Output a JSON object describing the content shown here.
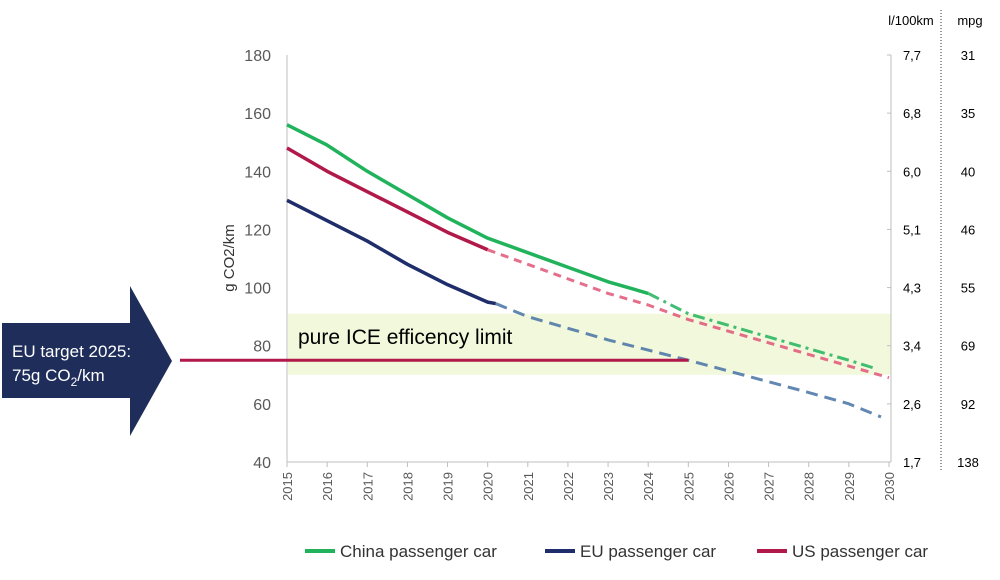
{
  "chart_data": {
    "type": "line",
    "ylabel": "g CO2/km",
    "ylim": [
      40,
      180
    ],
    "yticks": [
      "40",
      "60",
      "80",
      "100",
      "120",
      "140",
      "160",
      "180"
    ],
    "xlim": [
      2015,
      2030
    ],
    "xticks": [
      "2015",
      "2016",
      "2017",
      "2018",
      "2019",
      "2020",
      "2021",
      "2022",
      "2023",
      "2024",
      "2025",
      "2026",
      "2027",
      "2028",
      "2029",
      "2030"
    ],
    "right_axes": {
      "l100km": {
        "header": "l/100km",
        "labels": [
          "1,7",
          "2,6",
          "3,4",
          "4,3",
          "5,1",
          "6,0",
          "6,8",
          "7,7"
        ]
      },
      "mpg": {
        "header": "mpg",
        "labels": [
          "138",
          "92",
          "69",
          "55",
          "46",
          "40",
          "35",
          "31"
        ]
      }
    },
    "band": {
      "label": "pure ICE efficency limit",
      "y_range": [
        70,
        91
      ],
      "color": "#f2f8dc"
    },
    "target_line": {
      "x_range": [
        2010.7,
        2025
      ],
      "y": 75,
      "color": "#b0194a"
    },
    "annotation": {
      "line1": "EU target 2025:",
      "line2_pre": "75g CO",
      "line2_sub": "2",
      "line2_post": "/km",
      "color": "#1f2d5a"
    },
    "legend_position": "bottom",
    "series": [
      {
        "name": "China passenger car",
        "color": "#21b35c",
        "x": [
          2015,
          2016,
          2017,
          2018,
          2019,
          2020,
          2021,
          2022,
          2023,
          2024
        ],
        "values": [
          156,
          149,
          140,
          132,
          124,
          117,
          112,
          107,
          102,
          98
        ],
        "projection": {
          "x": [
            2024,
            2025,
            2026,
            2027,
            2028,
            2029,
            2029.7
          ],
          "values": [
            98,
            91,
            87,
            83,
            79,
            75,
            72
          ],
          "color": "#21b35c"
        }
      },
      {
        "name": "EU passenger car",
        "color": "#1f2d6b",
        "x": [
          2015,
          2016,
          2017,
          2018,
          2019,
          2020,
          2020.2
        ],
        "values": [
          130,
          123,
          116,
          108,
          101,
          95,
          94.5
        ],
        "projection": {
          "x": [
            2020.2,
            2021,
            2022,
            2023,
            2024,
            2025,
            2026,
            2027,
            2028,
            2029,
            2029.8
          ],
          "values": [
            94.5,
            90,
            86,
            82,
            78.5,
            75,
            71.3,
            67.6,
            63.9,
            60,
            55.5
          ],
          "color": "#4672a4"
        }
      },
      {
        "name": "US passenger car",
        "color": "#b0194a",
        "x": [
          2015,
          2016,
          2017,
          2018,
          2019,
          2020
        ],
        "values": [
          148,
          140,
          133,
          126,
          119,
          113
        ],
        "projection": {
          "x": [
            2020,
            2021,
            2022,
            2023,
            2024,
            2025,
            2026,
            2027,
            2028,
            2029,
            2030
          ],
          "values": [
            113,
            108,
            103,
            98,
            94,
            89,
            85,
            81,
            77,
            73,
            69
          ],
          "color": "#e05577"
        }
      }
    ]
  }
}
